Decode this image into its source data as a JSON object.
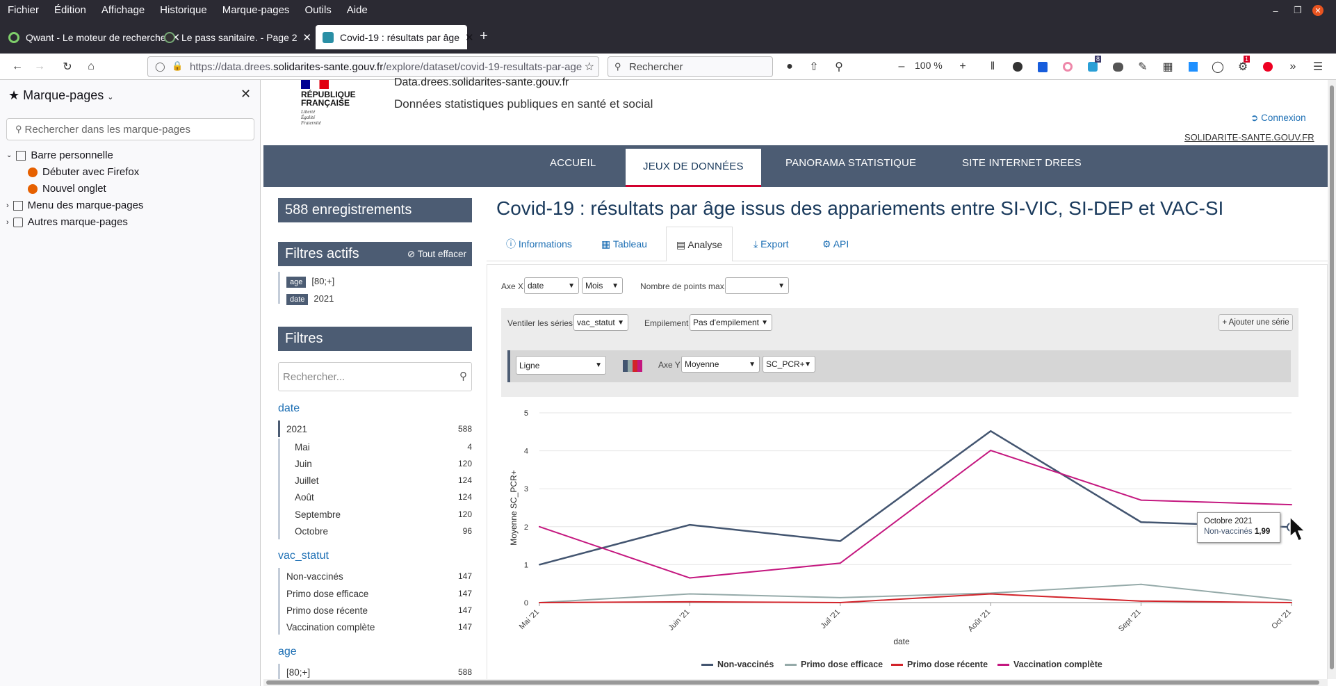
{
  "browser": {
    "menu": [
      "Fichier",
      "Édition",
      "Affichage",
      "Historique",
      "Marque-pages",
      "Outils",
      "Aide"
    ],
    "tabs": [
      {
        "title": "Qwant - Le moteur de recherche"
      },
      {
        "title": "Le pass sanitaire. - Page 2"
      },
      {
        "title": "Covid-19 : résultats par âge"
      }
    ],
    "url_prefix": "https://data.drees.",
    "url_domain": "solidarites-sante.gouv.fr",
    "url_rest": "/explore/dataset/covid-19-resultats-par-age",
    "search_placeholder": "Rechercher",
    "zoom": "100 %",
    "badge1": "8",
    "badge2": "1"
  },
  "sidebar": {
    "title": "Marque-pages",
    "search_placeholder": "Rechercher dans les marque-pages",
    "items": [
      "Barre personnelle",
      "Débuter avec Firefox",
      "Nouvel onglet",
      "Menu des marque-pages",
      "Autres marque-pages"
    ]
  },
  "site": {
    "logo": [
      "RÉPUBLIQUE",
      "FRANÇAISE"
    ],
    "motto": [
      "Liberté",
      "Égalité",
      "Fraternité"
    ],
    "name": "Data.drees.solidarites-sante.gouv.fr",
    "subtitle": "Données statistiques publiques en santé et social",
    "login": "Connexion",
    "link": "SOLIDARITE-SANTE.GOUV.FR",
    "nav": [
      "ACCUEIL",
      "JEUX DE DONNÉES",
      "PANORAMA STATISTIQUE",
      "SITE INTERNET DREES"
    ]
  },
  "left": {
    "records": "588 enregistrements",
    "active_title": "Filtres actifs",
    "clear": "Tout effacer",
    "active": [
      {
        "tag": "age",
        "value": "[80;+]"
      },
      {
        "tag": "date",
        "value": "2021"
      }
    ],
    "filters_title": "Filtres",
    "search_placeholder": "Rechercher...",
    "facets": {
      "date": {
        "title": "date",
        "year": {
          "label": "2021",
          "count": "588"
        },
        "months": [
          {
            "label": "Mai",
            "count": "4"
          },
          {
            "label": "Juin",
            "count": "120"
          },
          {
            "label": "Juillet",
            "count": "124"
          },
          {
            "label": "Août",
            "count": "124"
          },
          {
            "label": "Septembre",
            "count": "120"
          },
          {
            "label": "Octobre",
            "count": "96"
          }
        ]
      },
      "vac": {
        "title": "vac_statut",
        "items": [
          {
            "label": "Non-vaccinés",
            "count": "147"
          },
          {
            "label": "Primo dose efficace",
            "count": "147"
          },
          {
            "label": "Primo dose récente",
            "count": "147"
          },
          {
            "label": "Vaccination complète",
            "count": "147"
          }
        ]
      },
      "age": {
        "title": "age",
        "items": [
          {
            "label": "[80;+]",
            "count": "588"
          }
        ]
      }
    }
  },
  "main": {
    "title": "Covid-19 : résultats par âge issus des appariements entre SI-VIC, SI-DEP et VAC-SI",
    "tabs": [
      "Informations",
      "Tableau",
      "Analyse",
      "Export",
      "API"
    ],
    "axe_x_label": "Axe X",
    "axe_x": "date",
    "axe_x_unit": "Mois",
    "points_label": "Nombre de points max.",
    "points": "",
    "ventiler_label": "Ventiler les séries",
    "ventiler": "vac_statut",
    "empil_label": "Empilement",
    "empil": "Pas d'empilement",
    "add_series": "Ajouter une série",
    "chart_type": "Ligne",
    "axe_y_label": "Axe Y",
    "axe_y_agg": "Moyenne",
    "axe_y_field": "SC_PCR+",
    "tooltip_title": "Octobre 2021",
    "tooltip_series": "Non-vaccinés",
    "tooltip_value": "1,99"
  },
  "colors": {
    "non": "#435570",
    "primo_eff": "#95aaa9",
    "primo_rec": "#d2232a",
    "complete": "#c4177f"
  },
  "chart_data": {
    "type": "line",
    "x": [
      "Mai '21",
      "Juin '21",
      "Juil '21",
      "Août '21",
      "Sept '21",
      "Oct '21"
    ],
    "xlabel": "date",
    "ylabel": "Moyenne SC_PCR+",
    "ylim": [
      0,
      5
    ],
    "yticks": [
      "0",
      "1",
      "2",
      "3",
      "4",
      "5"
    ],
    "grid": true,
    "legend": "bottom",
    "series": [
      {
        "name": "Non-vaccinés",
        "values": [
          1.0,
          2.05,
          1.62,
          4.52,
          2.12,
          1.99
        ]
      },
      {
        "name": "Primo dose efficace",
        "values": [
          0.0,
          0.23,
          0.13,
          0.25,
          0.48,
          0.06
        ]
      },
      {
        "name": "Primo dose récente",
        "values": [
          0.0,
          0.02,
          0.0,
          0.23,
          0.04,
          0.0
        ]
      },
      {
        "name": "Vaccination complète",
        "values": [
          2.0,
          0.65,
          1.04,
          4.01,
          2.7,
          2.58
        ]
      }
    ]
  }
}
